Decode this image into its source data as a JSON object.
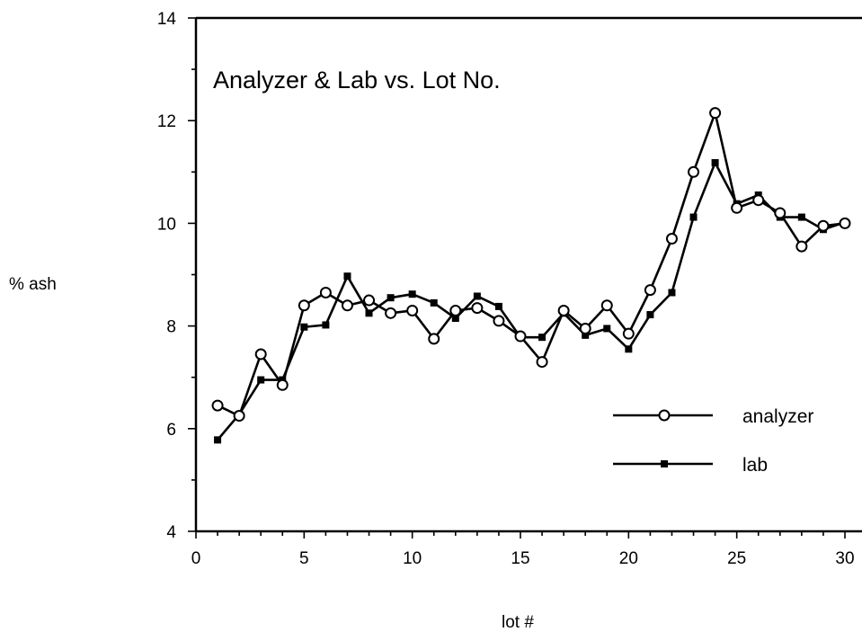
{
  "chart_data": {
    "type": "line",
    "title": "Analyzer & Lab vs. Lot No.",
    "xlabel": "lot #",
    "ylabel": "% ash",
    "xlim": [
      0,
      30
    ],
    "ylim": [
      4,
      14
    ],
    "x_ticks": [
      0,
      5,
      10,
      15,
      20,
      25,
      30
    ],
    "y_ticks": [
      4,
      6,
      8,
      10,
      12,
      14
    ],
    "grid": false,
    "legend_position": "bottom-right",
    "x": [
      1,
      2,
      3,
      4,
      5,
      6,
      7,
      8,
      9,
      10,
      11,
      12,
      13,
      14,
      15,
      16,
      17,
      18,
      19,
      20,
      21,
      22,
      23,
      24,
      25,
      26,
      27,
      28,
      29,
      30
    ],
    "series": [
      {
        "name": "analyzer",
        "marker": "open-circle",
        "values": [
          6.45,
          6.25,
          7.45,
          6.85,
          8.4,
          8.65,
          8.4,
          8.5,
          8.25,
          8.3,
          7.75,
          8.3,
          8.35,
          8.1,
          7.8,
          7.3,
          8.3,
          7.95,
          8.4,
          7.85,
          8.7,
          9.7,
          11.0,
          12.15,
          10.3,
          10.45,
          10.2,
          9.55,
          9.95,
          10.0
        ]
      },
      {
        "name": "lab",
        "marker": "filled-square",
        "values": [
          5.78,
          6.28,
          6.95,
          6.95,
          7.98,
          8.02,
          8.97,
          8.25,
          8.55,
          8.62,
          8.45,
          8.15,
          8.58,
          8.38,
          7.78,
          7.78,
          8.25,
          7.82,
          7.95,
          7.55,
          8.22,
          8.65,
          10.12,
          11.18,
          10.38,
          10.55,
          10.12,
          10.12,
          9.88,
          10.02
        ]
      }
    ]
  }
}
